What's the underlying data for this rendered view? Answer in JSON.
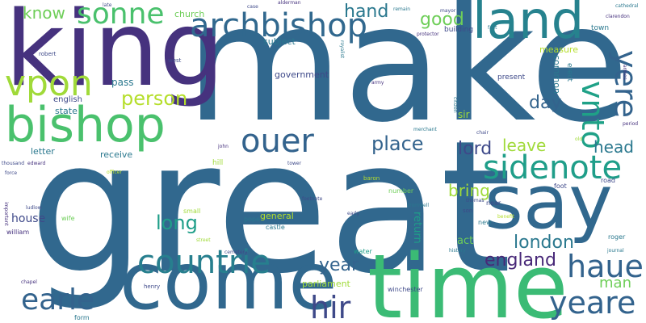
{
  "colors": {
    "background": "#ffffff",
    "palette": [
      "#440154",
      "#46327e",
      "#365c8d",
      "#277f8e",
      "#1fa187",
      "#4ac16d",
      "#a0da39",
      "#fde725"
    ]
  },
  "words": [
    {
      "text": "make",
      "color": "#31688e"
    },
    {
      "text": "great",
      "color": "#31688e"
    },
    {
      "text": "king",
      "color": "#46327e"
    },
    {
      "text": "time",
      "color": "#3bbb75"
    },
    {
      "text": "come",
      "color": "#31688e"
    },
    {
      "text": "say",
      "color": "#31688e"
    },
    {
      "text": "land",
      "color": "#26828e"
    },
    {
      "text": "bishop",
      "color": "#4ac16d"
    },
    {
      "text": "archbishop",
      "color": "#31688e"
    },
    {
      "text": "sonne",
      "color": "#4ac16d"
    },
    {
      "text": "vpon",
      "color": "#a0da39"
    },
    {
      "text": "ouer",
      "color": "#33638d"
    },
    {
      "text": "countrie",
      "color": "#277f8e"
    },
    {
      "text": "yere",
      "color": "#33638d"
    },
    {
      "text": "vnto",
      "color": "#1fa187"
    },
    {
      "text": "sidenote",
      "color": "#1f9e89"
    },
    {
      "text": "haue",
      "color": "#33638d"
    },
    {
      "text": "yeare",
      "color": "#33638d"
    },
    {
      "text": "earle",
      "color": "#33638d"
    },
    {
      "text": "hir",
      "color": "#3e4989"
    },
    {
      "text": "person",
      "color": "#b5de2b"
    },
    {
      "text": "place",
      "color": "#33638d"
    },
    {
      "text": "lord",
      "color": "#3e4989"
    },
    {
      "text": "long",
      "color": "#1f9e89"
    },
    {
      "text": "year",
      "color": "#33638d"
    },
    {
      "text": "london",
      "color": "#2a788e"
    },
    {
      "text": "england",
      "color": "#482878"
    },
    {
      "text": "hand",
      "color": "#2a788e"
    },
    {
      "text": "good",
      "color": "#6ece58"
    },
    {
      "text": "day",
      "color": "#33638d"
    },
    {
      "text": "head",
      "color": "#2a788e"
    },
    {
      "text": "leave",
      "color": "#a0da39"
    },
    {
      "text": "bring",
      "color": "#a0da39"
    },
    {
      "text": "man",
      "color": "#6ece58"
    },
    {
      "text": "know",
      "color": "#6ece58"
    },
    {
      "text": "house",
      "color": "#3e4989"
    },
    {
      "text": "government",
      "color": "#3e4989"
    },
    {
      "text": "subject",
      "color": "#2a788e"
    },
    {
      "text": "church",
      "color": "#6ece58"
    },
    {
      "text": "pass",
      "color": "#2a788e"
    },
    {
      "text": "english",
      "color": "#3e4989"
    },
    {
      "text": "state",
      "color": "#2a788e"
    },
    {
      "text": "letter",
      "color": "#2a788e"
    },
    {
      "text": "receive",
      "color": "#2a788e"
    },
    {
      "text": "general",
      "color": "#b5de2b"
    },
    {
      "text": "parliament",
      "color": "#a0da39"
    },
    {
      "text": "act",
      "color": "#6ece58"
    },
    {
      "text": "return",
      "color": "#1f9e89"
    },
    {
      "text": "measure",
      "color": "#b5de2b"
    },
    {
      "text": "common",
      "color": "#2a788e"
    },
    {
      "text": "present",
      "color": "#3e4989"
    },
    {
      "text": "sir",
      "color": "#a0da39"
    },
    {
      "text": "building",
      "color": "#3e4989"
    },
    {
      "text": "town",
      "color": "#2a788e"
    },
    {
      "text": "erect",
      "color": "#2a788e"
    },
    {
      "text": "robert",
      "color": "#3e4989"
    },
    {
      "text": "west",
      "color": "#3e4989"
    },
    {
      "text": "alderman",
      "color": "#46327e"
    },
    {
      "text": "mayor",
      "color": "#3e4989"
    },
    {
      "text": "cathedral",
      "color": "#2a788e"
    },
    {
      "text": "clarendon",
      "color": "#46327e"
    },
    {
      "text": "late",
      "color": "#3e4989"
    },
    {
      "text": "case",
      "color": "#3e4989"
    },
    {
      "text": "remain",
      "color": "#2a788e"
    },
    {
      "text": "protector",
      "color": "#46327e"
    },
    {
      "text": "royalist",
      "color": "#2a788e"
    },
    {
      "text": "army",
      "color": "#46327e"
    },
    {
      "text": "fact",
      "color": "#2a788e"
    },
    {
      "text": "john",
      "color": "#46327e"
    },
    {
      "text": "hill",
      "color": "#a0da39"
    },
    {
      "text": "small",
      "color": "#a0da39"
    },
    {
      "text": "pope",
      "color": "#2a788e"
    },
    {
      "text": "castle",
      "color": "#2a788e"
    },
    {
      "text": "water",
      "color": "#1f9e89"
    },
    {
      "text": "footnote",
      "color": "#3e4989"
    },
    {
      "text": "tower",
      "color": "#3e4989"
    },
    {
      "text": "baron",
      "color": "#b5de2b"
    },
    {
      "text": "merchant",
      "color": "#2a788e"
    },
    {
      "text": "number",
      "color": "#6ece58"
    },
    {
      "text": "cromwell",
      "color": "#2a788e"
    },
    {
      "text": "son",
      "color": "#3e4989"
    },
    {
      "text": "early",
      "color": "#3e4989"
    },
    {
      "text": "new",
      "color": "#2a788e"
    },
    {
      "text": "near",
      "color": "#3e4989"
    },
    {
      "text": "foot",
      "color": "#3e4989"
    },
    {
      "text": "road",
      "color": "#3e4989"
    },
    {
      "text": "roger",
      "color": "#2a788e"
    },
    {
      "text": "thousand",
      "color": "#3e4989"
    },
    {
      "text": "edward",
      "color": "#46327e"
    },
    {
      "text": "officer",
      "color": "#b5de2b"
    },
    {
      "text": "force",
      "color": "#3e4989"
    },
    {
      "text": "ludlow",
      "color": "#3e4989"
    },
    {
      "text": "wife",
      "color": "#6ece58"
    },
    {
      "text": "william",
      "color": "#46327e"
    },
    {
      "text": "chapel",
      "color": "#46327e"
    },
    {
      "text": "henry",
      "color": "#3e4989"
    },
    {
      "text": "form",
      "color": "#2a788e"
    },
    {
      "text": "winchester",
      "color": "#3e4989"
    },
    {
      "text": "history",
      "color": "#2a788e"
    },
    {
      "text": "period",
      "color": "#46327e"
    },
    {
      "text": "journal",
      "color": "#2a788e"
    },
    {
      "text": "benefit",
      "color": "#b5de2b"
    },
    {
      "text": "thomas",
      "color": "#3e4989"
    },
    {
      "text": "street",
      "color": "#a0da39"
    },
    {
      "text": "cemetery",
      "color": "#3e4989"
    },
    {
      "text": "important",
      "color": "#46327e"
    },
    {
      "text": "chair",
      "color": "#3e4989"
    },
    {
      "text": "old",
      "color": "#a0da39"
    },
    {
      "text": "citizen",
      "color": "#2a788e"
    },
    {
      "text": "armes",
      "color": "#46327e"
    }
  ]
}
